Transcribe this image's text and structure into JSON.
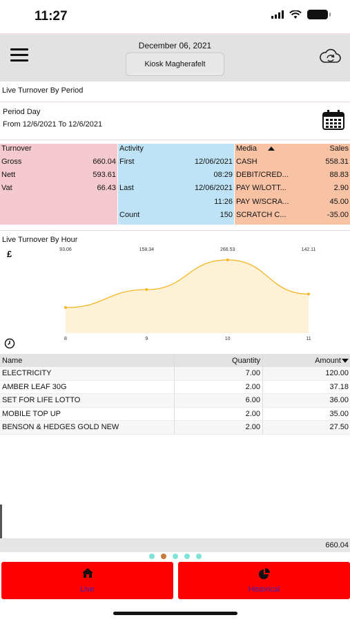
{
  "status": {
    "time": "11:27"
  },
  "header": {
    "date": "December 06, 2021",
    "store": "Kiosk Magherafelt"
  },
  "live_turnover_by_period": "Live Turnover By Period",
  "period": {
    "label": "Period Day",
    "range": "From 12/6/2021 To 12/6/2021"
  },
  "turnover": {
    "header": "Turnover",
    "rows": [
      {
        "label": "Gross",
        "value": "660.04"
      },
      {
        "label": "Nett",
        "value": "593.61"
      },
      {
        "label": "Vat",
        "value": "66.43"
      }
    ]
  },
  "activity": {
    "header": "Activity",
    "first_label": "First",
    "first_date": "12/06/2021",
    "first_time": "08:29",
    "last_label": "Last",
    "last_date": "12/06/2021",
    "last_time": "11:26",
    "count_label": "Count",
    "count_value": "150"
  },
  "media": {
    "header": "Media",
    "sales_header": "Sales",
    "rows": [
      {
        "label": "CASH",
        "value": "558.31"
      },
      {
        "label": "DEBIT/CRED...",
        "value": "88.83"
      },
      {
        "label": "PAY W/LOTT...",
        "value": "2.90"
      },
      {
        "label": "PAY W/SCRA...",
        "value": "45.00"
      },
      {
        "label": "SCRATCH C...",
        "value": "-35.00"
      }
    ]
  },
  "live_turnover_by_hour": "Live Turnover By Hour",
  "chart_icons": {
    "y": "£"
  },
  "chart_data": {
    "type": "area",
    "x": [
      8,
      9,
      10,
      11
    ],
    "tick_labels": [
      "8",
      "9",
      "10",
      "11"
    ],
    "values": [
      93.06,
      158.34,
      266.53,
      142.11
    ],
    "data_labels": [
      "93.06",
      "158.34",
      "266.53",
      "142.11"
    ],
    "color": "#f5b524",
    "fill": "#fdf1d6"
  },
  "table": {
    "headers": {
      "name": "Name",
      "quantity": "Quantity",
      "amount": "Amount"
    },
    "rows": [
      {
        "name": "ELECTRICITY",
        "quantity": "7.00",
        "amount": "120.00"
      },
      {
        "name": "AMBER LEAF 30G",
        "quantity": "2.00",
        "amount": "37.18"
      },
      {
        "name": "SET FOR LIFE LOTTO",
        "quantity": "6.00",
        "amount": "36.00"
      },
      {
        "name": "MOBILE TOP UP",
        "quantity": "2.00",
        "amount": "35.00"
      },
      {
        "name": "BENSON & HEDGES GOLD NEW",
        "quantity": "2.00",
        "amount": "27.50"
      }
    ],
    "total": "660.04"
  },
  "pager": {
    "count": 5,
    "active": 1,
    "colors": [
      "#7fe3d8",
      "#c57b3a",
      "#7fe3d8",
      "#7fe3d8",
      "#7fe3d8"
    ]
  },
  "tabs": [
    {
      "label": "Live",
      "icon": "home-icon"
    },
    {
      "label": "Historical",
      "icon": "pie-chart-icon"
    }
  ],
  "colors": {
    "tab_bg": "#ff0000",
    "tab_label": "#3d1fb5",
    "turnover_bg": "#f4c9cf",
    "activity_bg": "#bfe3f6",
    "media_bg": "#f8c3a5"
  }
}
